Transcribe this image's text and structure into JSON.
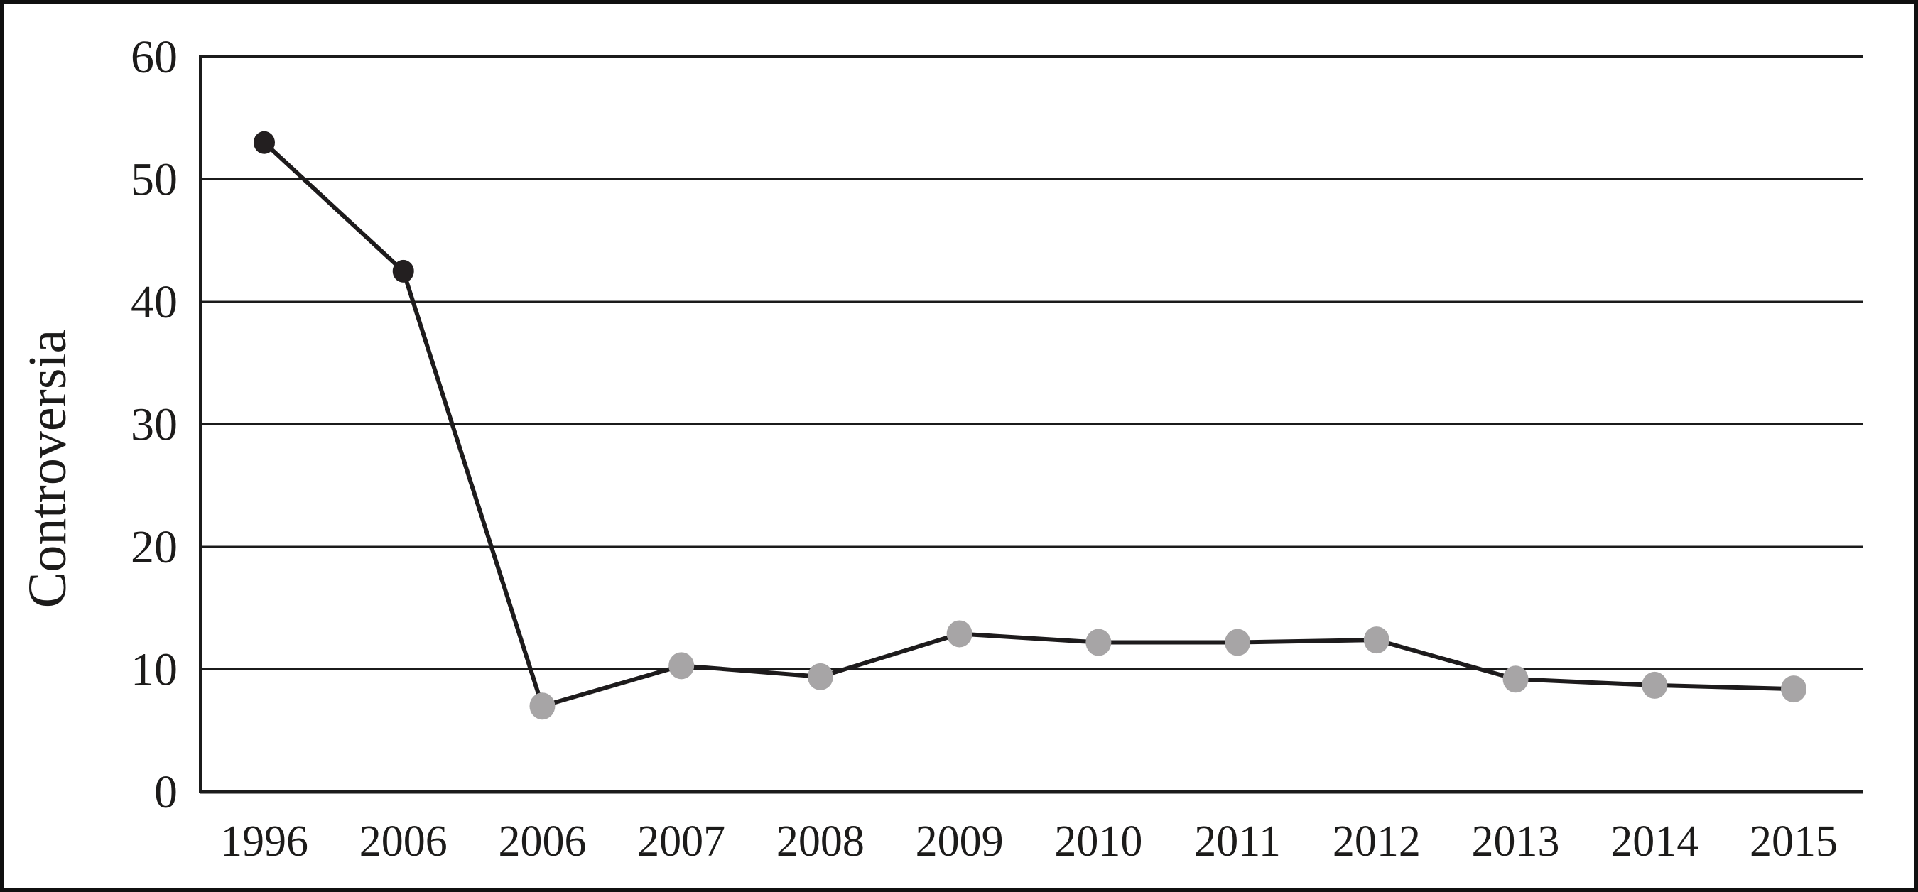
{
  "figure": {
    "background_color": "#ffffff",
    "frame_color": "#101010"
  },
  "chart_data": {
    "type": "line",
    "title": "",
    "ylabel": "Controversia",
    "xlabel": "",
    "categories": [
      "1996",
      "2006",
      "2006",
      "2007",
      "2008",
      "2009",
      "2010",
      "2011",
      "2012",
      "2013",
      "2014",
      "2015"
    ],
    "series": [
      {
        "name": "Controversia",
        "values": [
          53,
          42.5,
          7,
          10.3,
          9.4,
          12.9,
          12.2,
          12.2,
          12.4,
          9.2,
          8.7,
          8.4
        ],
        "line_color": "#1d1b1c",
        "marker_fill_colors": [
          "#231f20",
          "#231f20",
          "#a7a5a6",
          "#a7a5a6",
          "#a7a5a6",
          "#a7a5a6",
          "#a7a5a6",
          "#a7a5a6",
          "#a7a5a6",
          "#a7a5a6",
          "#a7a5a6",
          "#a7a5a6"
        ]
      }
    ],
    "ylim": [
      0,
      60
    ],
    "yticks": [
      0,
      10,
      20,
      30,
      40,
      50,
      60
    ],
    "grid": "horizontal",
    "legend": "none",
    "axis_color": "#1b1b1b",
    "text_color": "#1c1b1a"
  }
}
